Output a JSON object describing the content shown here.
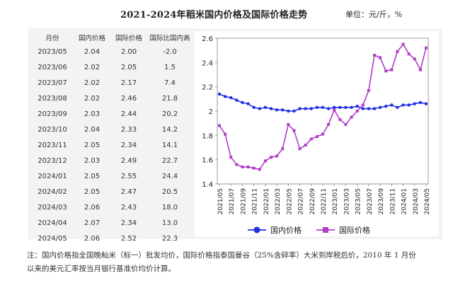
{
  "title": "2021-2024年稻米国内价格及国际价格走势",
  "unit": "单位：元/斤，%",
  "table": {
    "headers": [
      "月份",
      "国内价格",
      "国际价格",
      "国际比国内高"
    ],
    "rows": [
      [
        "2023/05",
        "2.04",
        "2.00",
        "-2.0"
      ],
      [
        "2023/06",
        "2.02",
        "2.05",
        "1.5"
      ],
      [
        "2023/07",
        "2.02",
        "2.17",
        "7.4"
      ],
      [
        "2023/08",
        "2.02",
        "2.46",
        "21.8"
      ],
      [
        "2023/09",
        "2.03",
        "2.44",
        "20.2"
      ],
      [
        "2023/10",
        "2.04",
        "2.33",
        "14.2"
      ],
      [
        "2023/11",
        "2.05",
        "2.34",
        "14.1"
      ],
      [
        "2023/12",
        "2.03",
        "2.49",
        "22.7"
      ],
      [
        "2024/01",
        "2.05",
        "2.55",
        "24.4"
      ],
      [
        "2024/02",
        "2.05",
        "2.47",
        "20.5"
      ],
      [
        "2024/03",
        "2.06",
        "2.43",
        "18.0"
      ],
      [
        "2024/04",
        "2.07",
        "2.34",
        "13.0"
      ],
      [
        "2024/05",
        "2.06",
        "2.52",
        "22.3"
      ]
    ]
  },
  "chart_data": {
    "type": "line",
    "x": [
      "2021/05",
      "2021/06",
      "2021/07",
      "2021/08",
      "2021/09",
      "2021/10",
      "2021/11",
      "2021/12",
      "2022/01",
      "2022/02",
      "2022/03",
      "2022/04",
      "2022/05",
      "2022/06",
      "2022/07",
      "2022/08",
      "2022/09",
      "2022/10",
      "2022/11",
      "2022/12",
      "2023/01",
      "2023/02",
      "2023/03",
      "2023/04",
      "2023/05",
      "2023/06",
      "2023/07",
      "2023/08",
      "2023/09",
      "2023/10",
      "2023/11",
      "2023/12",
      "2024/01",
      "2024/02",
      "2024/03",
      "2024/04",
      "2024/05"
    ],
    "tick_labels": [
      "2021/05",
      "2021/07",
      "2021/09",
      "2021/11",
      "2022/01",
      "2022/03",
      "2022/05",
      "2022/07",
      "2022/09",
      "2022/11",
      "2023/01",
      "2023/03",
      "2023/05",
      "2023/07",
      "2023/09",
      "2023/11",
      "2024/01",
      "2024/03",
      "2024/05"
    ],
    "ylim": [
      1.4,
      2.6
    ],
    "yticks": [
      1.4,
      1.6,
      1.8,
      2,
      2.2,
      2.4,
      2.6
    ],
    "grid": false,
    "legend_position": "bottom",
    "series": [
      {
        "name": "国内价格",
        "color": "#1f2fe6",
        "marker": "circle",
        "values": [
          2.14,
          2.12,
          2.11,
          2.09,
          2.07,
          2.06,
          2.03,
          2.02,
          2.03,
          2.02,
          2.01,
          2.01,
          2.0,
          2.0,
          2.02,
          2.02,
          2.02,
          2.03,
          2.03,
          2.02,
          2.03,
          2.03,
          2.03,
          2.03,
          2.04,
          2.02,
          2.02,
          2.02,
          2.03,
          2.04,
          2.05,
          2.03,
          2.05,
          2.05,
          2.06,
          2.07,
          2.06
        ]
      },
      {
        "name": "国际价格",
        "color": "#b23cc8",
        "marker": "square",
        "values": [
          1.88,
          1.81,
          1.62,
          1.56,
          1.54,
          1.54,
          1.53,
          1.52,
          1.59,
          1.62,
          1.63,
          1.69,
          1.89,
          1.84,
          1.69,
          1.72,
          1.77,
          1.79,
          1.81,
          1.89,
          2.01,
          1.93,
          1.89,
          1.95,
          2.0,
          2.05,
          2.17,
          2.46,
          2.44,
          2.33,
          2.34,
          2.49,
          2.55,
          2.47,
          2.43,
          2.34,
          2.52
        ]
      }
    ]
  },
  "note": "注：国内价格指全国晚籼米（标一）批发均价，国际价格指泰国曼谷（25%含碎率）大米到岸税后价，2010 年 1 月份以来的美元汇率按当月银行基准价均价计算。"
}
